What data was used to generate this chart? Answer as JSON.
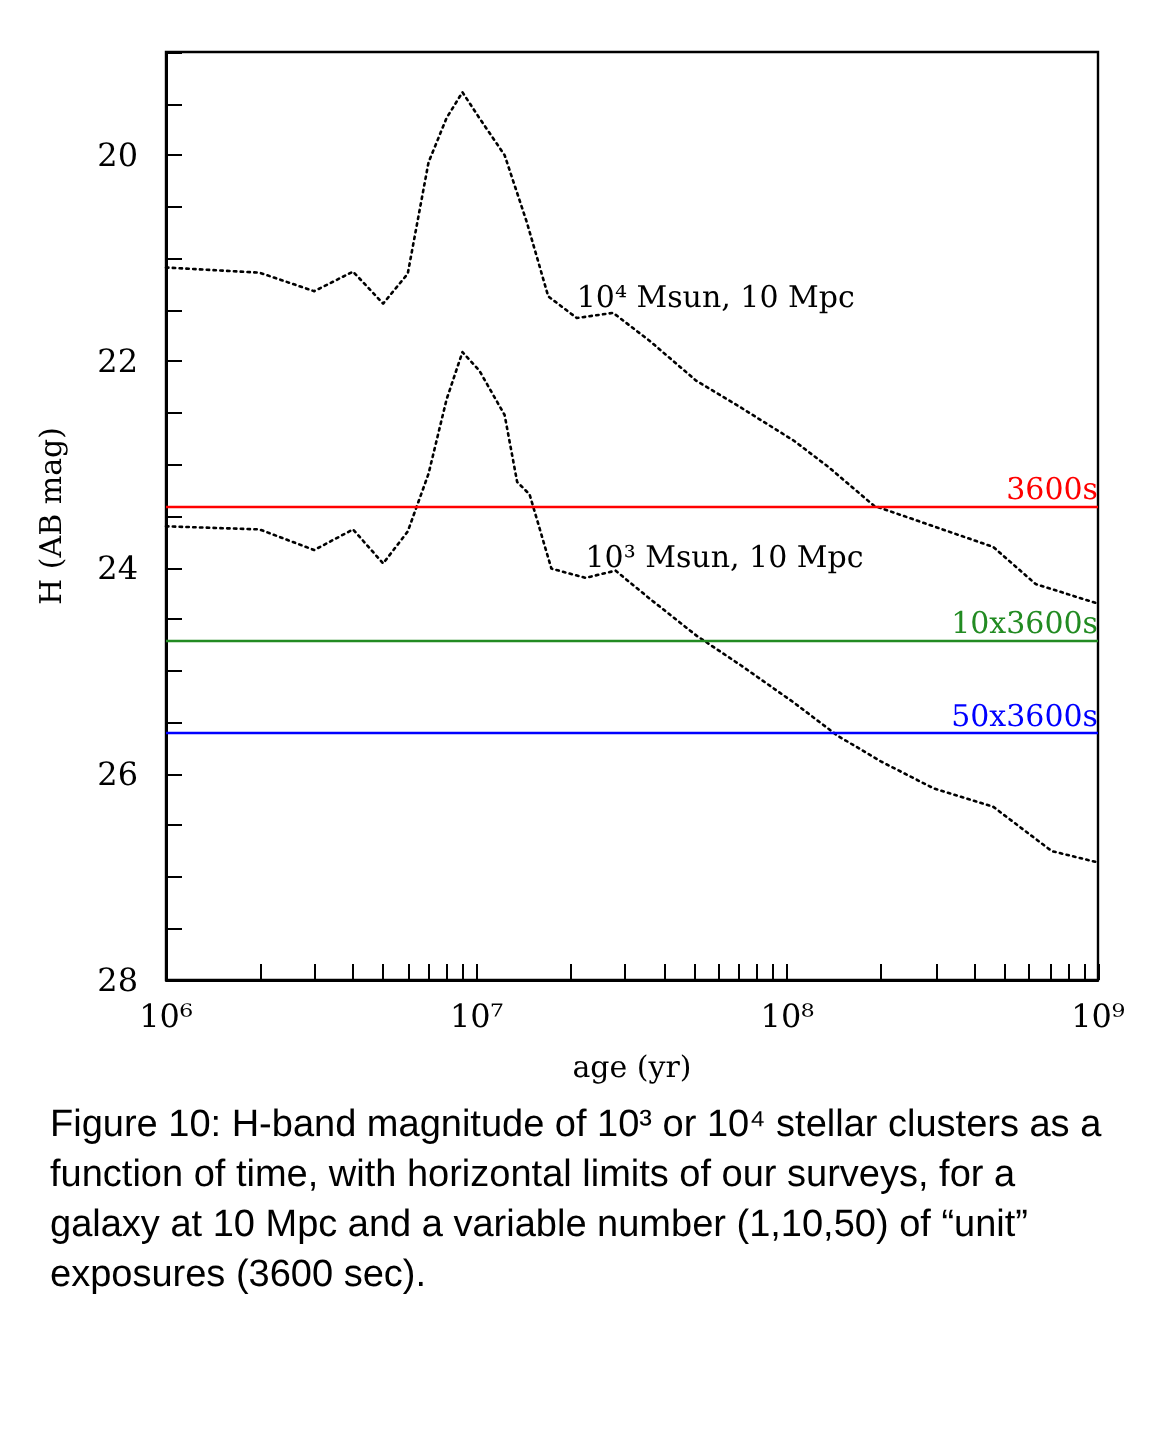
{
  "chart_data": {
    "type": "line",
    "xlabel": "age (yr)",
    "ylabel": "H (AB mag)",
    "log": "x",
    "xlim": [
      1000000,
      1000000000
    ],
    "ylim": [
      28,
      19
    ],
    "xticks": [
      {
        "value": 1000000,
        "label": "10⁶"
      },
      {
        "value": 2000000,
        "label": null
      },
      {
        "value": 3000000,
        "label": null
      },
      {
        "value": 4000000,
        "label": null
      },
      {
        "value": 5000000,
        "label": null
      },
      {
        "value": 6000000,
        "label": null
      },
      {
        "value": 7000000,
        "label": null
      },
      {
        "value": 8000000,
        "label": null
      },
      {
        "value": 9000000,
        "label": null
      },
      {
        "value": 10000000,
        "label": "10⁷"
      },
      {
        "value": 20000000,
        "label": null
      },
      {
        "value": 30000000,
        "label": null
      },
      {
        "value": 40000000,
        "label": null
      },
      {
        "value": 50000000,
        "label": null
      },
      {
        "value": 60000000,
        "label": null
      },
      {
        "value": 70000000,
        "label": null
      },
      {
        "value": 80000000,
        "label": null
      },
      {
        "value": 90000000,
        "label": null
      },
      {
        "value": 100000000,
        "label": "10⁸"
      },
      {
        "value": 200000000,
        "label": null
      },
      {
        "value": 300000000,
        "label": null
      },
      {
        "value": 400000000,
        "label": null
      },
      {
        "value": 500000000,
        "label": null
      },
      {
        "value": 600000000,
        "label": null
      },
      {
        "value": 700000000,
        "label": null
      },
      {
        "value": 800000000,
        "label": null
      },
      {
        "value": 900000000,
        "label": null
      },
      {
        "value": 1000000000,
        "label": "10⁹"
      }
    ],
    "yticks": [
      {
        "value": 19,
        "label": null
      },
      {
        "value": 19.5,
        "label": null
      },
      20,
      {
        "value": 20.5,
        "label": null
      },
      {
        "value": 21,
        "label": null
      },
      {
        "value": 21.5,
        "label": null
      },
      22,
      {
        "value": 22.5,
        "label": null
      },
      {
        "value": 23,
        "label": null
      },
      {
        "value": 23.5,
        "label": null
      },
      24,
      {
        "value": 24.5,
        "label": null
      },
      {
        "value": 25,
        "label": null
      },
      {
        "value": 25.5,
        "label": null
      },
      26,
      {
        "value": 26.5,
        "label": null
      },
      {
        "value": 27,
        "label": null
      },
      {
        "value": 27.5,
        "label": null
      },
      28
    ],
    "grid": false,
    "legend": false,
    "marker": "none",
    "line_style": "dotted",
    "series": [
      {
        "name": "10⁴ Msun, 10 Mpc",
        "color": "#000000",
        "x": [
          1000000,
          2000000,
          3000000,
          4000000,
          5000000,
          6000000,
          7000000,
          8000000,
          9000000,
          10200000,
          12300000,
          14500000,
          17000000,
          21000000,
          27500000,
          36000000,
          51000000,
          71000000,
          105000000,
          135000000,
          190000000,
          460000000,
          630000000,
          1000000000
        ],
        "values": [
          21.09,
          21.14,
          21.32,
          21.13,
          21.44,
          21.15,
          20.07,
          19.64,
          19.39,
          19.64,
          20.0,
          20.65,
          21.37,
          21.58,
          21.53,
          21.8,
          22.19,
          22.45,
          22.77,
          23.02,
          23.4,
          23.8,
          24.16,
          24.35
        ]
      },
      {
        "name": "10³ Msun, 10 Mpc",
        "color": "#000000",
        "x": [
          1000000,
          2000000,
          3000000,
          4000000,
          5000000,
          6000000,
          7000000,
          8000000,
          9000000,
          10200000,
          12300000,
          13500000,
          14800000,
          17400000,
          22400000,
          28000000,
          36000000,
          51000000,
          71000000,
          105000000,
          145000000,
          200000000,
          295000000,
          460000000,
          710000000,
          1000000000
        ],
        "values": [
          23.6,
          23.63,
          23.83,
          23.63,
          23.96,
          23.65,
          23.09,
          22.37,
          21.91,
          22.09,
          22.52,
          23.17,
          23.29,
          24.01,
          24.1,
          24.03,
          24.3,
          24.66,
          24.95,
          25.31,
          25.63,
          25.88,
          26.14,
          26.32,
          26.75,
          26.86
        ]
      }
    ],
    "ref_lines": [
      {
        "axis": "y",
        "value": 23.4,
        "label": "3600s",
        "color": "#ff0000",
        "line_style": "solid"
      },
      {
        "axis": "y",
        "value": 24.7,
        "label": "10x3600s",
        "color": "#228b22",
        "line_style": "solid"
      },
      {
        "axis": "y",
        "value": 25.6,
        "label": "50x3600s",
        "color": "#0000ff",
        "line_style": "solid"
      }
    ],
    "annotations": [
      "Figure 10: H-band magnitude of 10³ or 10⁴ stellar clusters as a function of time, with horizontal limits of our surveys, for a galaxy at 10 Mpc and a variable number (1,10,50)  of “unit” exposures  (3600 sec)."
    ]
  }
}
